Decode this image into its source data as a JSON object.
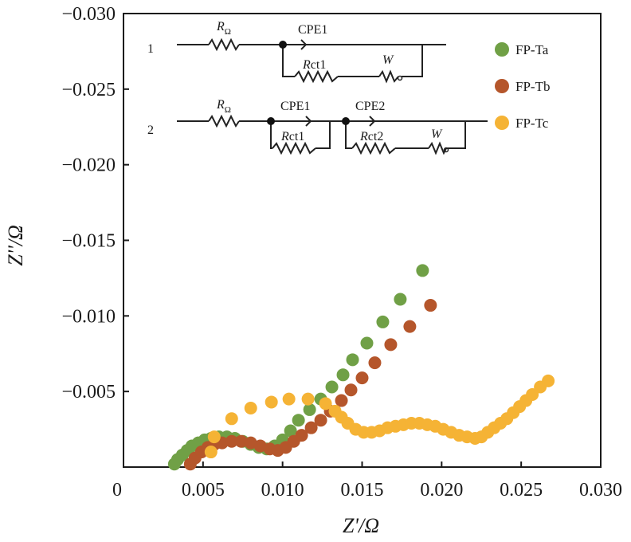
{
  "chart_data": {
    "type": "scatter",
    "xlabel": "Z'/Ω",
    "ylabel": "Z''/Ω",
    "xlim": [
      0,
      0.03
    ],
    "ylim": [
      0,
      -0.03
    ],
    "x_ticks": [
      "0",
      "0.005",
      "0.010",
      "0.015",
      "0.020",
      "0.025",
      "0.030"
    ],
    "y_ticks": [
      "−0.005",
      "−0.010",
      "−0.015",
      "−0.020",
      "−0.025",
      "−0.030"
    ],
    "grid": false,
    "legend_position": "top-right",
    "series": [
      {
        "name": "FP-Ta",
        "color": "#70A046",
        "points": [
          [
            0.0032,
            -0.0002
          ],
          [
            0.0034,
            -0.0005
          ],
          [
            0.0037,
            -0.0008
          ],
          [
            0.004,
            -0.0011
          ],
          [
            0.0043,
            -0.0014
          ],
          [
            0.0047,
            -0.0016
          ],
          [
            0.0051,
            -0.0018
          ],
          [
            0.0055,
            -0.0019
          ],
          [
            0.006,
            -0.002
          ],
          [
            0.0065,
            -0.002
          ],
          [
            0.007,
            -0.0019
          ],
          [
            0.0075,
            -0.0017
          ],
          [
            0.008,
            -0.0015
          ],
          [
            0.0085,
            -0.0013
          ],
          [
            0.009,
            -0.0012
          ],
          [
            0.0095,
            -0.0014
          ],
          [
            0.01,
            -0.0018
          ],
          [
            0.0105,
            -0.0024
          ],
          [
            0.011,
            -0.0031
          ],
          [
            0.0117,
            -0.0038
          ],
          [
            0.0124,
            -0.0045
          ],
          [
            0.0131,
            -0.0053
          ],
          [
            0.0138,
            -0.0061
          ],
          [
            0.0144,
            -0.0071
          ],
          [
            0.0153,
            -0.0082
          ],
          [
            0.0163,
            -0.0096
          ],
          [
            0.0174,
            -0.0111
          ],
          [
            0.0188,
            -0.013
          ]
        ]
      },
      {
        "name": "FP-Tb",
        "color": "#B5562B",
        "points": [
          [
            0.0042,
            -0.0002
          ],
          [
            0.0045,
            -0.0006
          ],
          [
            0.0049,
            -0.001
          ],
          [
            0.0053,
            -0.0013
          ],
          [
            0.0057,
            -0.0015
          ],
          [
            0.0062,
            -0.0016
          ],
          [
            0.0068,
            -0.0017
          ],
          [
            0.0074,
            -0.0017
          ],
          [
            0.008,
            -0.0016
          ],
          [
            0.0086,
            -0.0014
          ],
          [
            0.0092,
            -0.0012
          ],
          [
            0.0097,
            -0.0011
          ],
          [
            0.0102,
            -0.0013
          ],
          [
            0.0107,
            -0.0017
          ],
          [
            0.0112,
            -0.0021
          ],
          [
            0.0118,
            -0.0026
          ],
          [
            0.0124,
            -0.0031
          ],
          [
            0.013,
            -0.0037
          ],
          [
            0.0137,
            -0.0044
          ],
          [
            0.0143,
            -0.0051
          ],
          [
            0.015,
            -0.0059
          ],
          [
            0.0158,
            -0.0069
          ],
          [
            0.0168,
            -0.0081
          ],
          [
            0.018,
            -0.0093
          ],
          [
            0.0193,
            -0.0107
          ]
        ]
      },
      {
        "name": "FP-Tc",
        "color": "#F5B335",
        "points": [
          [
            0.0055,
            -0.001
          ],
          [
            0.0057,
            -0.002
          ],
          [
            0.0068,
            -0.0032
          ],
          [
            0.008,
            -0.0039
          ],
          [
            0.0093,
            -0.0043
          ],
          [
            0.0104,
            -0.0045
          ],
          [
            0.0116,
            -0.0045
          ],
          [
            0.0127,
            -0.0042
          ],
          [
            0.0133,
            -0.0037
          ],
          [
            0.0137,
            -0.0033
          ],
          [
            0.0141,
            -0.0029
          ],
          [
            0.0146,
            -0.0025
          ],
          [
            0.0151,
            -0.0023
          ],
          [
            0.0156,
            -0.0023
          ],
          [
            0.0161,
            -0.0024
          ],
          [
            0.0166,
            -0.0026
          ],
          [
            0.0171,
            -0.0027
          ],
          [
            0.0176,
            -0.0028
          ],
          [
            0.0181,
            -0.0029
          ],
          [
            0.0186,
            -0.0029
          ],
          [
            0.0191,
            -0.0028
          ],
          [
            0.0196,
            -0.0027
          ],
          [
            0.0201,
            -0.0025
          ],
          [
            0.0206,
            -0.0023
          ],
          [
            0.0211,
            -0.0021
          ],
          [
            0.0216,
            -0.002
          ],
          [
            0.0221,
            -0.0019
          ],
          [
            0.0225,
            -0.002
          ],
          [
            0.0229,
            -0.0023
          ],
          [
            0.0233,
            -0.0026
          ],
          [
            0.0237,
            -0.0029
          ],
          [
            0.0241,
            -0.0032
          ],
          [
            0.0245,
            -0.0036
          ],
          [
            0.0249,
            -0.004
          ],
          [
            0.0253,
            -0.0044
          ],
          [
            0.0257,
            -0.0048
          ],
          [
            0.0262,
            -0.0053
          ],
          [
            0.0267,
            -0.0057
          ]
        ]
      }
    ]
  },
  "circuit": {
    "row1_number": "1",
    "row2_number": "2",
    "r_omega_symbol": "R",
    "r_omega_subscript": "Ω",
    "cpe1": "CPE1",
    "cpe2": "CPE2",
    "rct1_symbol": "R",
    "rct1_rest": "ct1",
    "rct2_symbol": "R",
    "rct2_rest": "ct2",
    "w": "W"
  }
}
